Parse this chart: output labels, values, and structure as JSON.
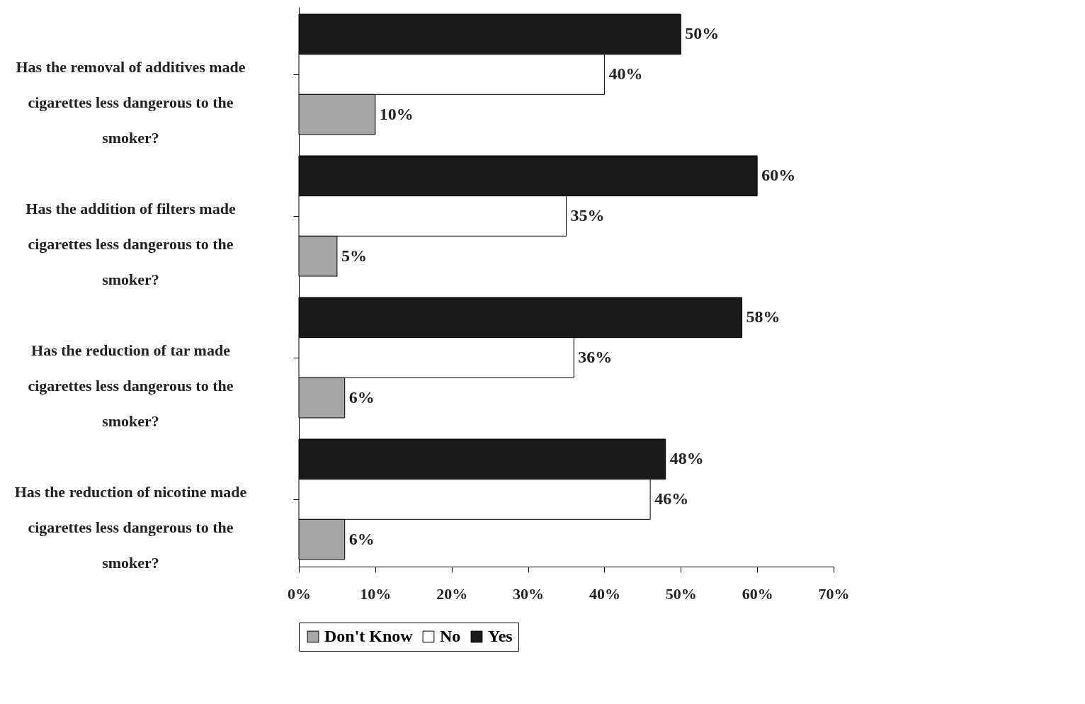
{
  "chart_data": {
    "type": "bar",
    "orientation": "horizontal",
    "categories": [
      "Has the removal of additives made cigarettes less dangerous to the smoker?",
      "Has the addition of filters made cigarettes less dangerous to the smoker?",
      "Has the reduction of tar made cigarettes less dangerous to the smoker?",
      "Has the reduction of nicotine made cigarettes less dangerous to the smoker?"
    ],
    "series": [
      {
        "name": "Yes",
        "color": "#1a1a1a",
        "values": [
          50,
          60,
          58,
          48
        ],
        "value_labels": [
          "50%",
          "60%",
          "58%",
          "48%"
        ]
      },
      {
        "name": "No",
        "color": "#ffffff",
        "values": [
          40,
          35,
          36,
          46
        ],
        "value_labels": [
          "40%",
          "35%",
          "36%",
          "46%"
        ]
      },
      {
        "name": "Don't Know",
        "color": "#a6a6a6",
        "values": [
          10,
          5,
          6,
          6
        ],
        "value_labels": [
          "10%",
          "5%",
          "6%",
          "6%"
        ]
      }
    ],
    "xlim": [
      0,
      70
    ],
    "xticks": [
      {
        "value": 0,
        "label": "0%"
      },
      {
        "value": 10,
        "label": "10%"
      },
      {
        "value": 20,
        "label": "20%"
      },
      {
        "value": 30,
        "label": "30%"
      },
      {
        "value": 40,
        "label": "40%"
      },
      {
        "value": 50,
        "label": "50%"
      },
      {
        "value": 60,
        "label": "60%"
      },
      {
        "value": 70,
        "label": "70%"
      }
    ],
    "grid": false,
    "legend": "bottom"
  }
}
